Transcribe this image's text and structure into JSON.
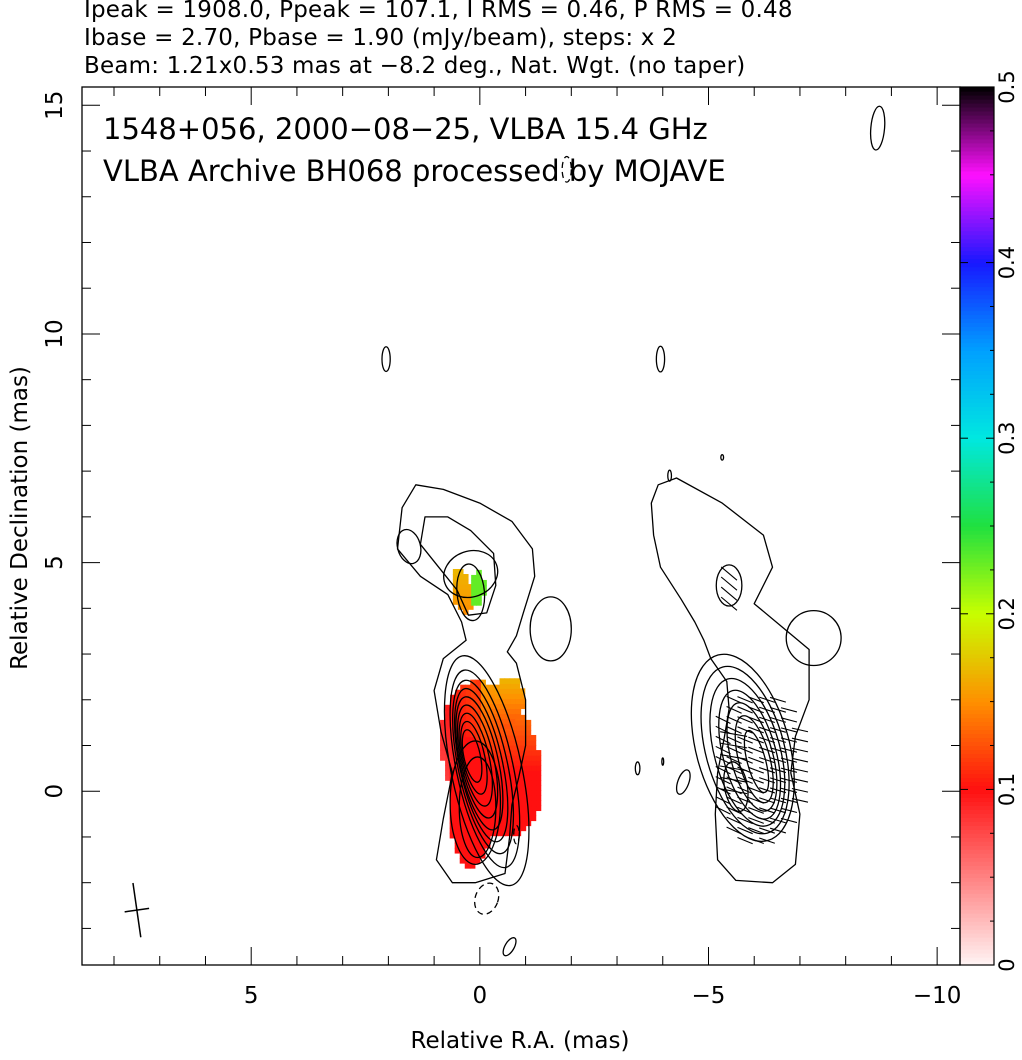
{
  "header": {
    "line1": "Ipeak = 1908.0, Ppeak = 107.1, I RMS = 0.46, P RMS = 0.48",
    "line2": "Ibase = 2.70, Pbase = 1.90 (mJy/beam), steps: x 2",
    "line3": "Beam: 1.21x0.53 mas at −8.2 deg., Nat. Wgt. (no taper)"
  },
  "chart_data": {
    "type": "heatmap",
    "annotations": [
      "1548+056, 2000−08−25, VLBA 15.4 GHz",
      "VLBA Archive BH068 processed by MOJAVE"
    ],
    "xlabel": "Relative R.A. (mas)",
    "ylabel": "Relative Declination (mas)",
    "xlim": [
      8.7,
      -10.5
    ],
    "ylim": [
      -3.8,
      15.4
    ],
    "x_ticks": [
      5,
      0,
      -5,
      -10
    ],
    "x_tick_labels": [
      "5",
      "0",
      "−5",
      "−10"
    ],
    "y_ticks": [
      0,
      5,
      10,
      15
    ],
    "y_tick_labels": [
      "0",
      "5",
      "10",
      "15"
    ],
    "colorbar": {
      "min": 0,
      "max": 0.5,
      "ticks": [
        0,
        0.1,
        0.2,
        0.3,
        0.4,
        0.5
      ],
      "tick_labels": [
        "0",
        "0.1",
        "0.2",
        "0.3",
        "0.4",
        "0.5"
      ]
    },
    "source": "1548+056",
    "date": "2000-08-25",
    "frequency": "15.4 GHz",
    "ipeak_mjy_per_beam": 1908.0,
    "ppeak_mjy_per_beam": 107.1,
    "i_rms": 0.46,
    "p_rms": 0.48,
    "ibase": 2.7,
    "pbase": 1.9,
    "contour_step_factor": 2,
    "beam": {
      "major_mas": 1.21,
      "minor_mas": 0.53,
      "pa_deg": -8.2
    }
  },
  "colors": {
    "frac_pol_low": "#ffdddd",
    "frac_pol_01": "#ff2020",
    "frac_pol_02": "#c0ff00",
    "frac_pol_03": "#00e0d0",
    "frac_pol_04": "#2020ff",
    "frac_pol_05": "#000000"
  }
}
